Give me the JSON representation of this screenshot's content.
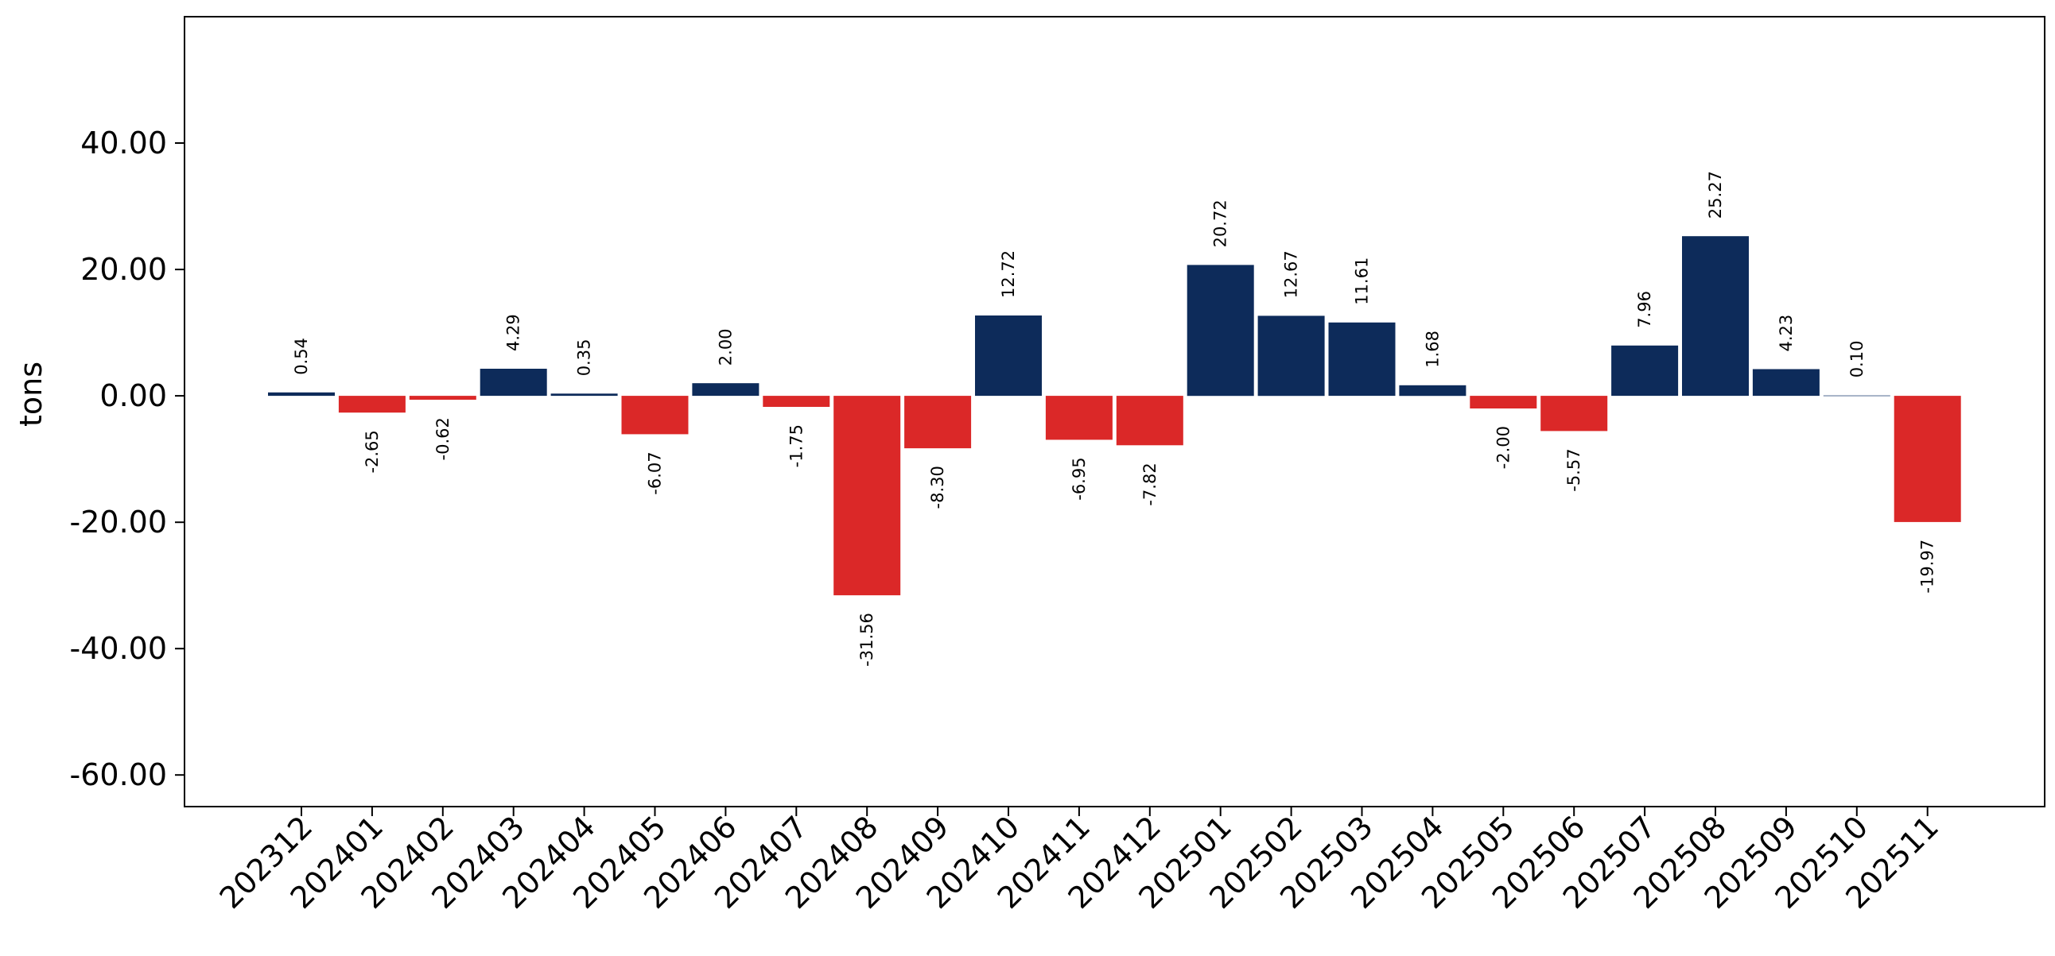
{
  "chart_data": {
    "type": "bar",
    "ylabel": "tons",
    "ylim": [
      -65,
      60
    ],
    "yticks": [
      40,
      20,
      0,
      -20,
      -40,
      -60
    ],
    "ytick_labels": [
      "40.00",
      "20.00",
      "0.00",
      "-20.00",
      "-40.00",
      "-60.00"
    ],
    "categories": [
      "202312",
      "202401",
      "202402",
      "202403",
      "202404",
      "202405",
      "202406",
      "202407",
      "202408",
      "202409",
      "202410",
      "202411",
      "202412",
      "202501",
      "202502",
      "202503",
      "202504",
      "202505",
      "202506",
      "202507",
      "202508",
      "202509",
      "202510",
      "202511"
    ],
    "values": [
      0.54,
      -2.65,
      -0.62,
      4.29,
      0.35,
      -6.07,
      2.0,
      -1.75,
      -31.56,
      -8.3,
      12.72,
      -6.95,
      -7.82,
      20.72,
      12.67,
      11.61,
      1.68,
      -2.0,
      -5.57,
      7.96,
      25.27,
      4.23,
      0.1,
      -19.97
    ],
    "data_labels": [
      "0.54",
      "-2.65",
      "-0.62",
      "4.29",
      "0.35",
      "-6.07",
      "2.00",
      "-1.75",
      "-31.56",
      "-8.30",
      "12.72",
      "-6.95",
      "-7.82",
      "20.72",
      "12.67",
      "11.61",
      "1.68",
      "-2.00",
      "-5.57",
      "7.96",
      "25.27",
      "4.23",
      "0.10",
      "-19.97"
    ],
    "colors": {
      "positive": "#0d2b5a",
      "negative": "#db2828",
      "small": "#8a9bb5"
    },
    "grid": false,
    "legend": "none"
  }
}
